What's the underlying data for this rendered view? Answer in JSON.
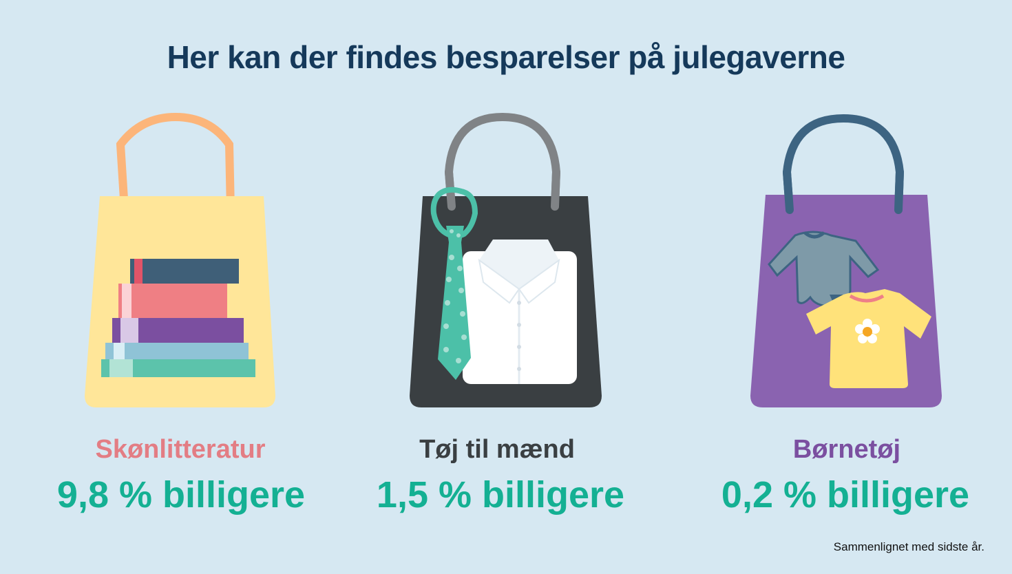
{
  "title": "Her kan der findes besparelser på julegaverne",
  "items": [
    {
      "category": "Skønlitteratur",
      "value_text": "9,8 % billigere",
      "value": 9.8,
      "category_color": "#e37d84",
      "icon": "books-bag-icon"
    },
    {
      "category": "Tøj til mænd",
      "value_text": "1,5 % billigere",
      "value": 1.5,
      "category_color": "#3a3f42",
      "icon": "shirt-tie-bag-icon"
    },
    {
      "category": "Børnetøj",
      "value_text": "0,2 % billigere",
      "value": 0.2,
      "category_color": "#7b4fa0",
      "icon": "kids-clothes-bag-icon"
    }
  ],
  "value_color": "#14b093",
  "footnote": "Sammenlignet med sidste år."
}
